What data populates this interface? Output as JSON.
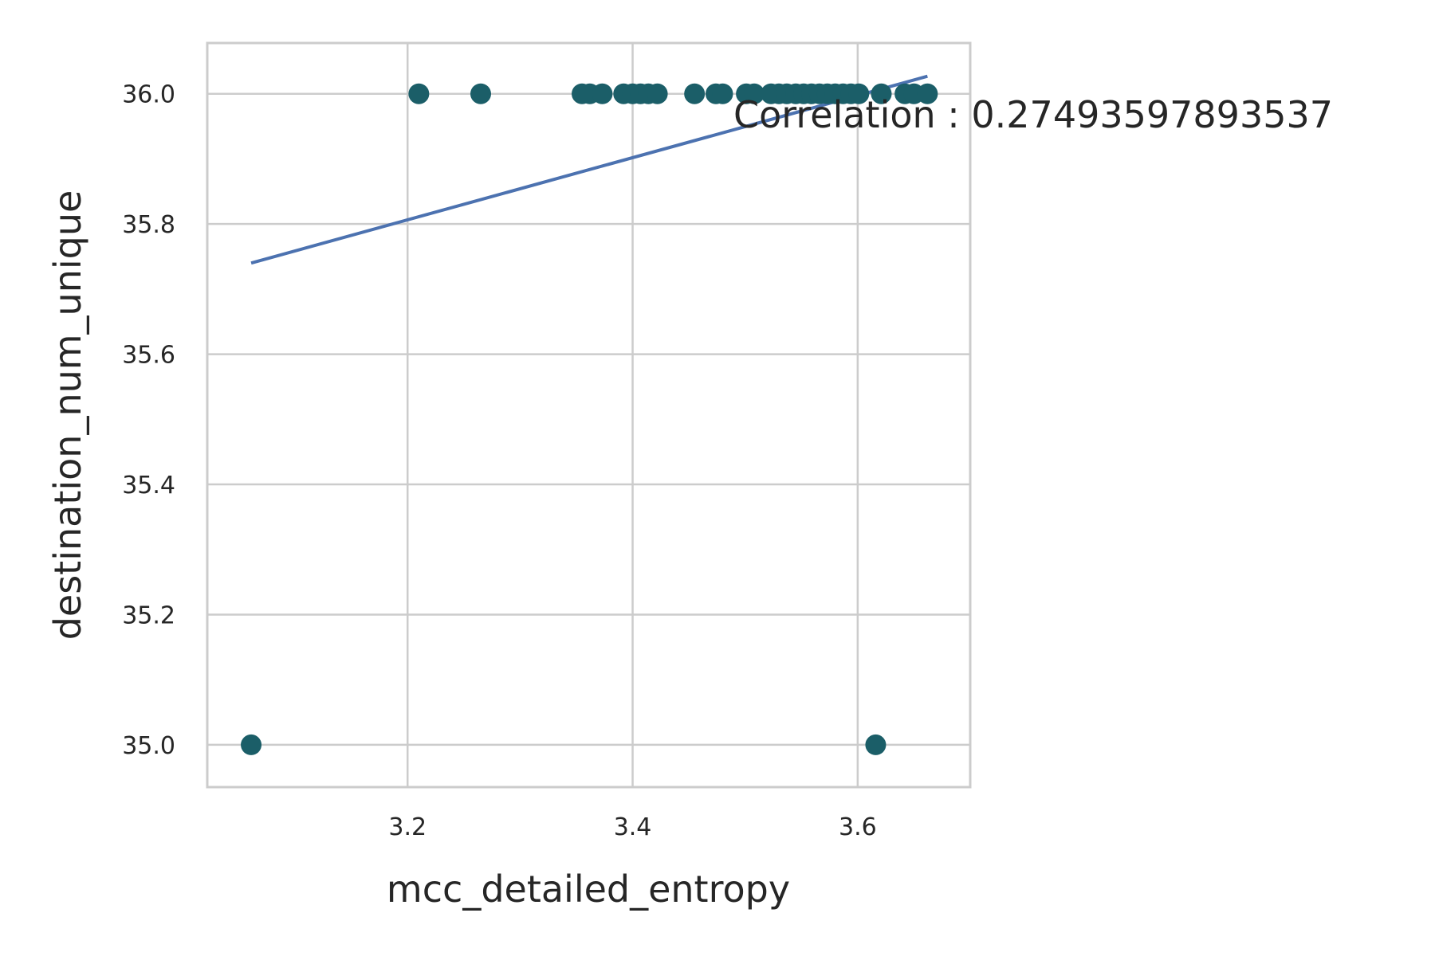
{
  "chart_data": {
    "type": "scatter",
    "title": "",
    "xlabel": "mcc_detailed_entropy",
    "ylabel": "destination_num_unique",
    "xlim": [
      3.022,
      3.7
    ],
    "ylim": [
      34.935,
      36.078
    ],
    "xticks": [
      3.2,
      3.4,
      3.6
    ],
    "xtick_labels": [
      "3.2",
      "3.4",
      "3.6"
    ],
    "yticks": [
      35.0,
      35.2,
      35.4,
      35.6,
      35.8,
      36.0
    ],
    "ytick_labels": [
      "35.0",
      "35.2",
      "35.4",
      "35.6",
      "35.8",
      "36.0"
    ],
    "grid": true,
    "points": [
      {
        "x": 3.061,
        "y": 35.0
      },
      {
        "x": 3.616,
        "y": 35.0
      },
      {
        "x": 3.21,
        "y": 36.0
      },
      {
        "x": 3.265,
        "y": 36.0
      },
      {
        "x": 3.355,
        "y": 36.0
      },
      {
        "x": 3.362,
        "y": 36.0
      },
      {
        "x": 3.373,
        "y": 36.0
      },
      {
        "x": 3.392,
        "y": 36.0
      },
      {
        "x": 3.4,
        "y": 36.0
      },
      {
        "x": 3.407,
        "y": 36.0
      },
      {
        "x": 3.414,
        "y": 36.0
      },
      {
        "x": 3.422,
        "y": 36.0
      },
      {
        "x": 3.455,
        "y": 36.0
      },
      {
        "x": 3.474,
        "y": 36.0
      },
      {
        "x": 3.48,
        "y": 36.0
      },
      {
        "x": 3.501,
        "y": 36.0
      },
      {
        "x": 3.508,
        "y": 36.0
      },
      {
        "x": 3.523,
        "y": 36.0
      },
      {
        "x": 3.53,
        "y": 36.0
      },
      {
        "x": 3.537,
        "y": 36.0
      },
      {
        "x": 3.545,
        "y": 36.0
      },
      {
        "x": 3.552,
        "y": 36.0
      },
      {
        "x": 3.559,
        "y": 36.0
      },
      {
        "x": 3.566,
        "y": 36.0
      },
      {
        "x": 3.573,
        "y": 36.0
      },
      {
        "x": 3.58,
        "y": 36.0
      },
      {
        "x": 3.587,
        "y": 36.0
      },
      {
        "x": 3.594,
        "y": 36.0
      },
      {
        "x": 3.601,
        "y": 36.0
      },
      {
        "x": 3.621,
        "y": 36.0
      },
      {
        "x": 3.642,
        "y": 36.0
      },
      {
        "x": 3.65,
        "y": 36.0
      },
      {
        "x": 3.662,
        "y": 36.0
      }
    ],
    "trendline": {
      "x": [
        3.061,
        3.662
      ],
      "y": [
        35.74,
        36.027
      ]
    },
    "annotation": "Correlation : 0.27493597893537",
    "colors": {
      "points": "#1b5e68",
      "trendline": "#4c72b0",
      "grid": "#cccccc"
    }
  }
}
